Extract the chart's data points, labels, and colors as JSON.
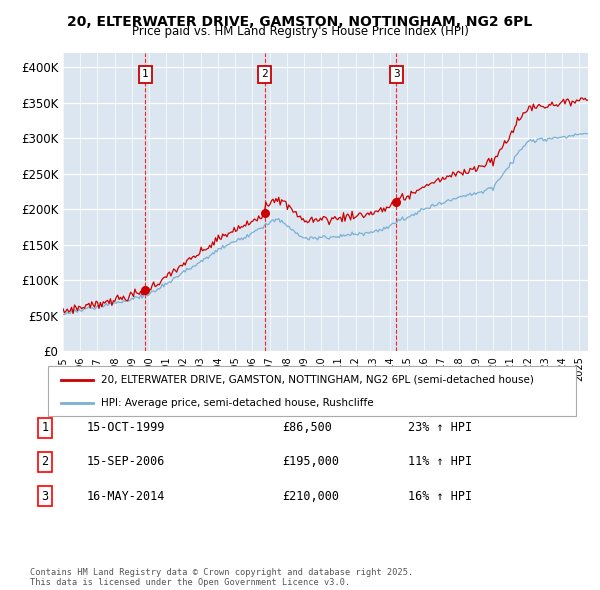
{
  "title": "20, ELTERWATER DRIVE, GAMSTON, NOTTINGHAM, NG2 6PL",
  "subtitle": "Price paid vs. HM Land Registry's House Price Index (HPI)",
  "background_color": "#dce6f1",
  "red_line_label": "20, ELTERWATER DRIVE, GAMSTON, NOTTINGHAM, NG2 6PL (semi-detached house)",
  "blue_line_label": "HPI: Average price, semi-detached house, Rushcliffe",
  "footer": "Contains HM Land Registry data © Crown copyright and database right 2025.\nThis data is licensed under the Open Government Licence v3.0.",
  "sales": [
    {
      "num": 1,
      "date": "15-OCT-1999",
      "price": 86500,
      "hpi_text": "23% ↑ HPI",
      "year": 1999.79
    },
    {
      "num": 2,
      "date": "15-SEP-2006",
      "price": 195000,
      "hpi_text": "11% ↑ HPI",
      "year": 2006.71
    },
    {
      "num": 3,
      "date": "16-MAY-2014",
      "price": 210000,
      "hpi_text": "16% ↑ HPI",
      "year": 2014.37
    }
  ],
  "ylim": [
    0,
    420000
  ],
  "xlim_start": 1995.0,
  "xlim_end": 2025.5,
  "yticks": [
    0,
    50000,
    100000,
    150000,
    200000,
    250000,
    300000,
    350000,
    400000
  ],
  "ytick_labels": [
    "£0",
    "£50K",
    "£100K",
    "£150K",
    "£200K",
    "£250K",
    "£300K",
    "£350K",
    "£400K"
  ],
  "red_color": "#cc0000",
  "blue_color": "#7ab0d4",
  "grid_color": "#ffffff",
  "marker_box_color": "#cc0000"
}
